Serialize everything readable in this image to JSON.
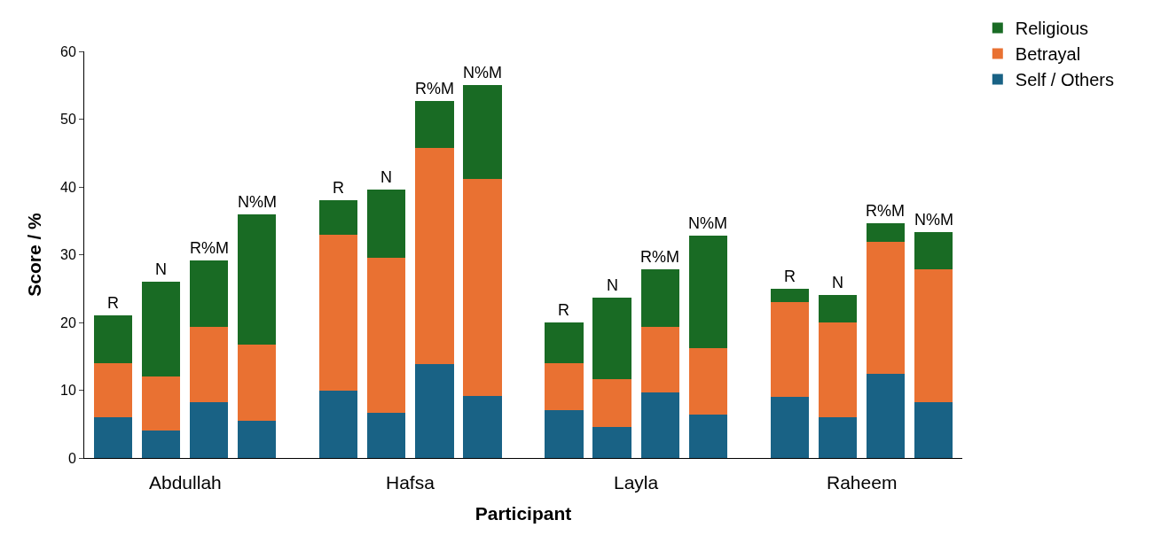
{
  "chart_data": {
    "type": "bar",
    "stacked": true,
    "xlabel": "Participant",
    "ylabel": "Score / %",
    "categories": [
      "R",
      "N",
      "R%M",
      "N%M",
      "R",
      "N",
      "R%M",
      "N%M",
      "R",
      "N",
      "R%M",
      "N%M",
      "R",
      "N",
      "R%M",
      "N%M"
    ],
    "annotations": [
      "Abdullah",
      "Hafsa",
      "Layla",
      "Raheem"
    ],
    "series": [
      {
        "name": "Self / Others",
        "color": "#196285",
        "values": [
          6,
          4,
          8.2,
          5.5,
          10,
          6.7,
          13.8,
          9.2,
          7,
          4.6,
          9.7,
          6.4,
          9,
          6,
          12.4,
          8.3
        ]
      },
      {
        "name": "Betrayal",
        "color": "#e97132",
        "values": [
          8,
          8,
          11.2,
          11.2,
          23,
          22.9,
          32,
          32,
          7,
          7.1,
          9.7,
          9.8,
          14,
          14,
          19.5,
          19.5
        ]
      },
      {
        "name": "Religious",
        "color": "#196b24",
        "values": [
          7,
          14,
          9.7,
          19.3,
          5,
          10,
          6.9,
          13.8,
          6,
          12,
          8.4,
          16.6,
          2,
          4,
          2.8,
          5.5
        ]
      }
    ],
    "ylim": [
      0,
      60
    ],
    "yticks": [
      0,
      10,
      20,
      30,
      40,
      50,
      60
    ],
    "grid": false,
    "legend": "top right"
  }
}
